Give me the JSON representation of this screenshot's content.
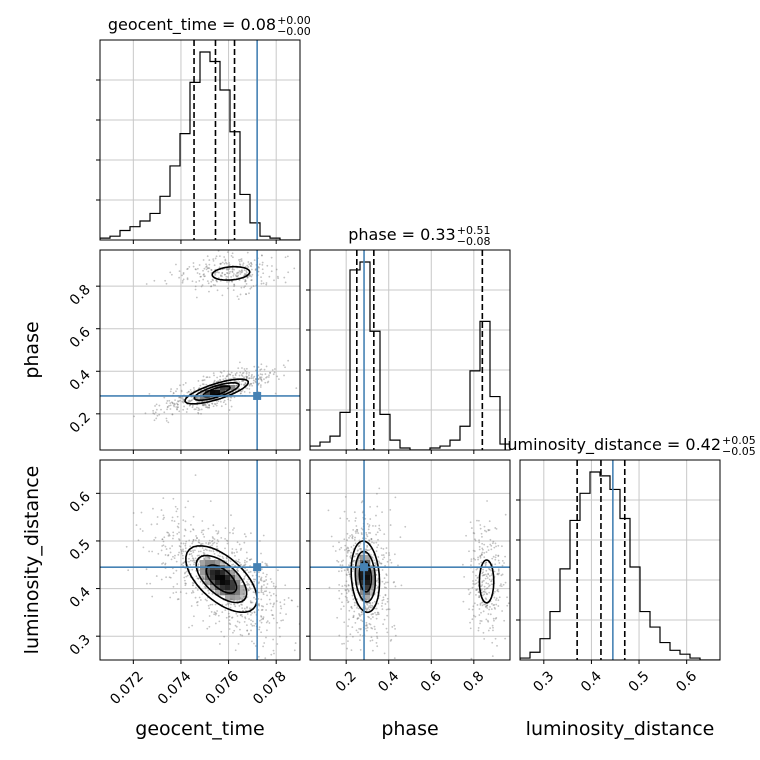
{
  "chart_data": {
    "type": "corner",
    "parameters": [
      "geocent_time",
      "phase",
      "luminosity_distance"
    ],
    "injection": {
      "geocent_time": 0.0772,
      "phase": 0.284,
      "luminosity_distance": 0.445
    },
    "titles": {
      "geocent_time": {
        "name": "geocent_time",
        "median": "0.08",
        "plus": "+0.00",
        "minus": "−0.00"
      },
      "phase": {
        "name": "phase",
        "median": "0.33",
        "plus": "+0.51",
        "minus": "−0.08"
      },
      "luminosity_distance": {
        "name": "luminosity_distance",
        "median": "0.42",
        "plus": "+0.05",
        "minus": "−0.05"
      }
    },
    "axes": {
      "geocent_time": {
        "label": "geocent_time",
        "range": [
          0.0706,
          0.079
        ],
        "ticks": [
          0.072,
          0.074,
          0.076,
          0.078
        ],
        "tick_labels": [
          "0.072",
          "0.074",
          "0.076",
          "0.078"
        ]
      },
      "phase": {
        "label": "phase",
        "range": [
          0.03,
          0.97
        ],
        "ticks": [
          0.2,
          0.4,
          0.6,
          0.8
        ],
        "tick_labels": [
          "0.2",
          "0.4",
          "0.6",
          "0.8"
        ]
      },
      "luminosity_distance": {
        "label": "luminosity_distance",
        "range": [
          0.25,
          0.67
        ],
        "ticks": [
          0.3,
          0.4,
          0.5,
          0.6
        ],
        "tick_labels": [
          "0.3",
          "0.4",
          "0.5",
          "0.6"
        ]
      }
    },
    "histograms": {
      "geocent_time": {
        "edges": [
          0.0706,
          0.07102,
          0.07144,
          0.07186,
          0.07228,
          0.0727,
          0.07312,
          0.07354,
          0.07396,
          0.07438,
          0.0748,
          0.07522,
          0.07564,
          0.07606,
          0.07648,
          0.0769,
          0.07732,
          0.07774,
          0.07816,
          0.07858,
          0.079
        ],
        "counts": [
          0.01,
          0.02,
          0.05,
          0.07,
          0.1,
          0.14,
          0.23,
          0.39,
          0.56,
          0.83,
          0.99,
          0.94,
          0.79,
          0.57,
          0.24,
          0.09,
          0.02,
          0.01,
          0,
          0
        ],
        "quantiles": [
          0.07455,
          0.07545,
          0.07625
        ]
      },
      "phase": {
        "edges": [
          0.03,
          0.077,
          0.124,
          0.171,
          0.218,
          0.265,
          0.312,
          0.359,
          0.406,
          0.453,
          0.5,
          0.547,
          0.594,
          0.641,
          0.688,
          0.735,
          0.782,
          0.829,
          0.876,
          0.923,
          0.97
        ],
        "counts": [
          0.02,
          0.04,
          0.07,
          0.19,
          0.91,
          0.95,
          0.6,
          0.18,
          0.05,
          0.01,
          0,
          0,
          0.01,
          0.02,
          0.05,
          0.12,
          0.4,
          0.65,
          0.27,
          0.03
        ],
        "quantiles": [
          0.25,
          0.33,
          0.84
        ]
      },
      "luminosity_distance": {
        "edges": [
          0.25,
          0.271,
          0.292,
          0.313,
          0.334,
          0.355,
          0.376,
          0.397,
          0.418,
          0.439,
          0.46,
          0.481,
          0.502,
          0.523,
          0.544,
          0.565,
          0.586,
          0.607,
          0.628,
          0.649,
          0.67
        ],
        "counts": [
          0.01,
          0.04,
          0.11,
          0.25,
          0.47,
          0.72,
          0.86,
          0.97,
          0.95,
          0.88,
          0.73,
          0.48,
          0.25,
          0.17,
          0.09,
          0.05,
          0.03,
          0.01,
          0,
          0
        ],
        "quantiles": [
          0.37,
          0.42,
          0.47
        ]
      }
    },
    "density": {
      "phase|geocent_time": [
        {
          "center": [
            0.0755,
            0.305
          ],
          "spread": [
            0.0008,
            0.035
          ],
          "corr": 0.75,
          "weight": 0.68
        },
        {
          "center": [
            0.0761,
            0.86
          ],
          "spread": [
            0.0007,
            0.028
          ],
          "corr": 0.2,
          "weight": 0.32
        }
      ],
      "luminosity_distance|geocent_time": [
        {
          "center": [
            0.0757,
            0.42
          ],
          "spread": [
            0.0009,
            0.042
          ],
          "corr": -0.6,
          "weight": 1.0
        }
      ],
      "luminosity_distance|phase": [
        {
          "center": [
            0.29,
            0.425
          ],
          "spread": [
            0.04,
            0.045
          ],
          "corr": -0.15,
          "weight": 0.68
        },
        {
          "center": [
            0.86,
            0.415
          ],
          "spread": [
            0.03,
            0.04
          ],
          "corr": 0.0,
          "weight": 0.32
        }
      ]
    },
    "grid": true,
    "injection_color": "#4682b4",
    "quantile_style": "dashed"
  }
}
